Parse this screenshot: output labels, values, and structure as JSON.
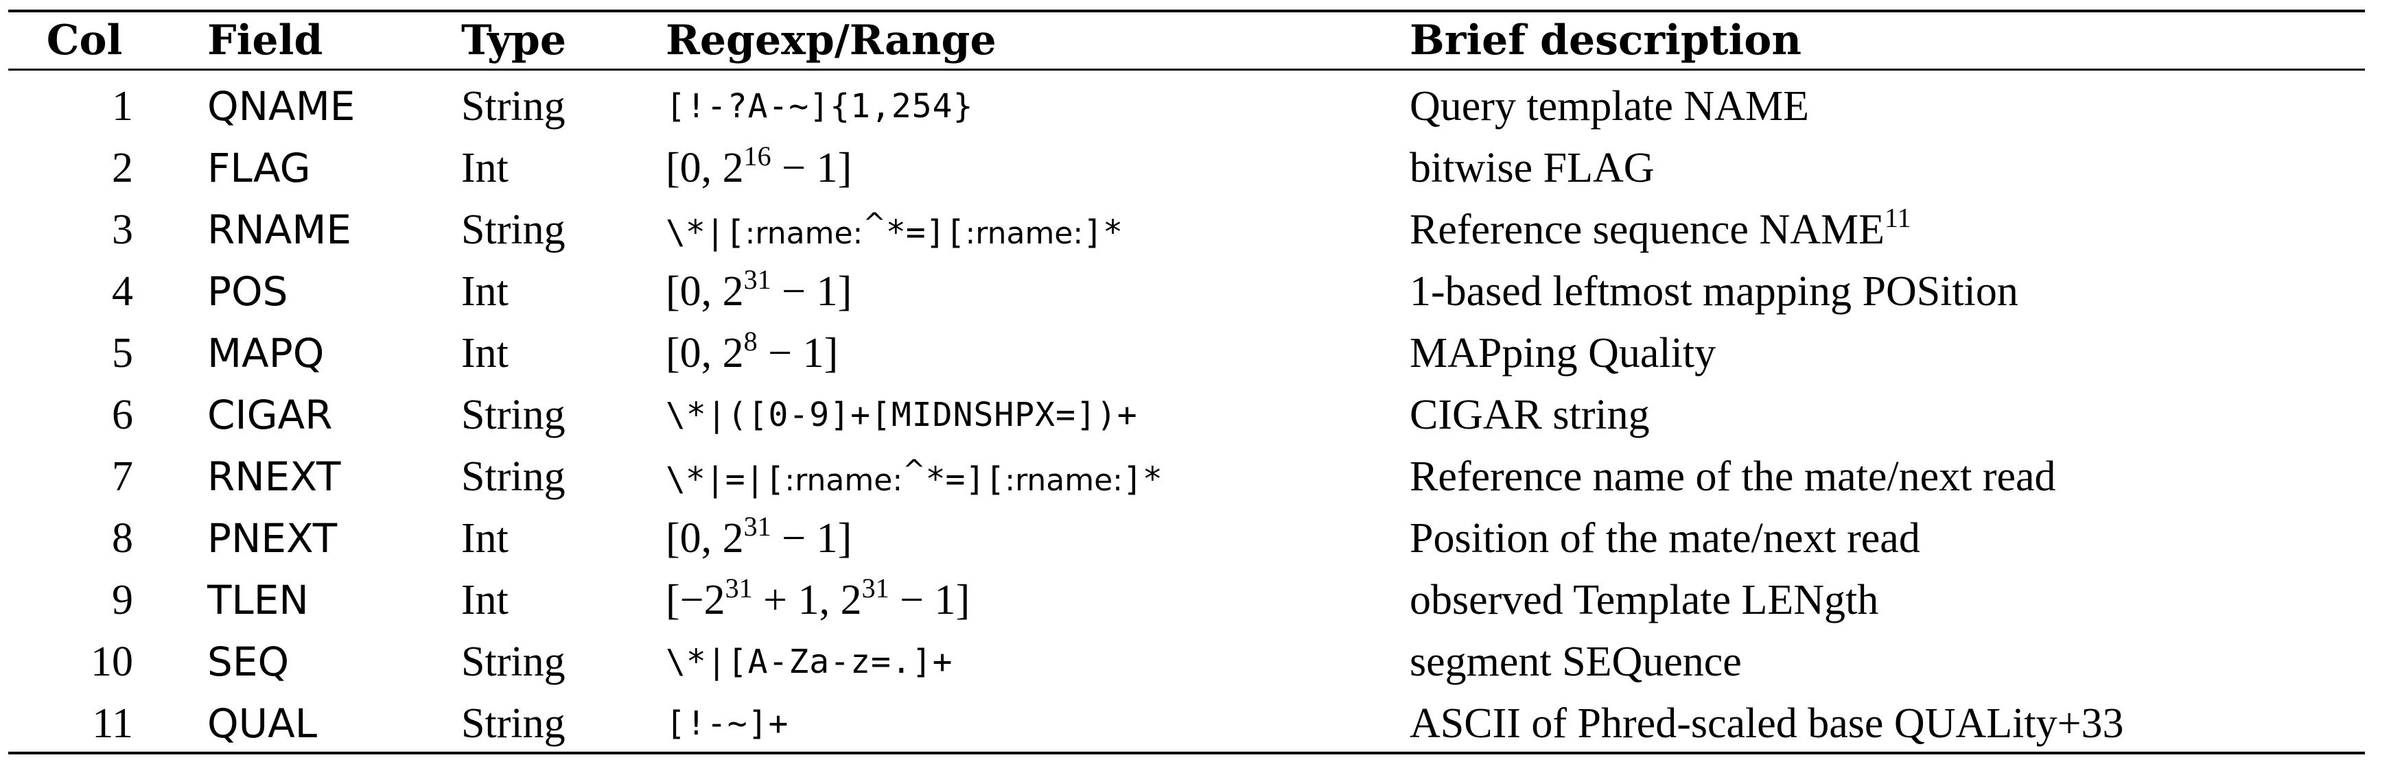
{
  "headers": {
    "col": "Col",
    "field": "Field",
    "type": "Type",
    "regex": "Regexp/Range",
    "desc": "Brief description"
  },
  "rows": [
    {
      "col": "1",
      "field": "QNAME",
      "type": "String",
      "regex": "[!-?A-~]{1,254}",
      "desc": "Query template NAME"
    },
    {
      "col": "2",
      "field": "FLAG",
      "type": "Int",
      "range_lo": "0",
      "range_hi_base": "2",
      "range_hi_exp": "16",
      "range_hi_tail": " − 1",
      "desc": "bitwise FLAG"
    },
    {
      "col": "3",
      "field": "RNAME",
      "type": "String",
      "rx_a": "\\*|[",
      "rx_b": ":rname:",
      "rx_c": "^",
      "rx_d": "*=][",
      "rx_e": ":rname:",
      "rx_f": "]*",
      "desc": "Reference sequence NAME",
      "desc_sup": "11"
    },
    {
      "col": "4",
      "field": "POS",
      "type": "Int",
      "range_lo": "0",
      "range_hi_base": "2",
      "range_hi_exp": "31",
      "range_hi_tail": " − 1",
      "desc": "1-based leftmost mapping POSition"
    },
    {
      "col": "5",
      "field": "MAPQ",
      "type": "Int",
      "range_lo": "0",
      "range_hi_base": "2",
      "range_hi_exp": "8",
      "range_hi_tail": " − 1",
      "desc": "MAPping Quality"
    },
    {
      "col": "6",
      "field": "CIGAR",
      "type": "String",
      "regex": "\\*|([0-9]+[MIDNSHPX=])+",
      "desc": "CIGAR string"
    },
    {
      "col": "7",
      "field": "RNEXT",
      "type": "String",
      "rx_a": "\\*|=|[",
      "rx_b": ":rname:",
      "rx_c": "^",
      "rx_d": "*=][",
      "rx_e": ":rname:",
      "rx_f": "]*",
      "desc": "Reference name of the mate/next read"
    },
    {
      "col": "8",
      "field": "PNEXT",
      "type": "Int",
      "range_lo": "0",
      "range_hi_base": "2",
      "range_hi_exp": "31",
      "range_hi_tail": " − 1",
      "desc": "Position of the mate/next read"
    },
    {
      "col": "9",
      "field": "TLEN",
      "type": "Int",
      "tl_a": "−2",
      "tl_a_exp": "31",
      "tl_b": " + 1, 2",
      "tl_b_exp": "31",
      "tl_c": " − 1",
      "desc": "observed Template LENgth"
    },
    {
      "col": "10",
      "field": "SEQ",
      "type": "String",
      "regex": "\\*|[A-Za-z=.]+",
      "desc": "segment SEQuence"
    },
    {
      "col": "11",
      "field": "QUAL",
      "type": "String",
      "regex": "[!-~]+",
      "desc": "ASCII of Phred-scaled base QUALity+33"
    }
  ]
}
